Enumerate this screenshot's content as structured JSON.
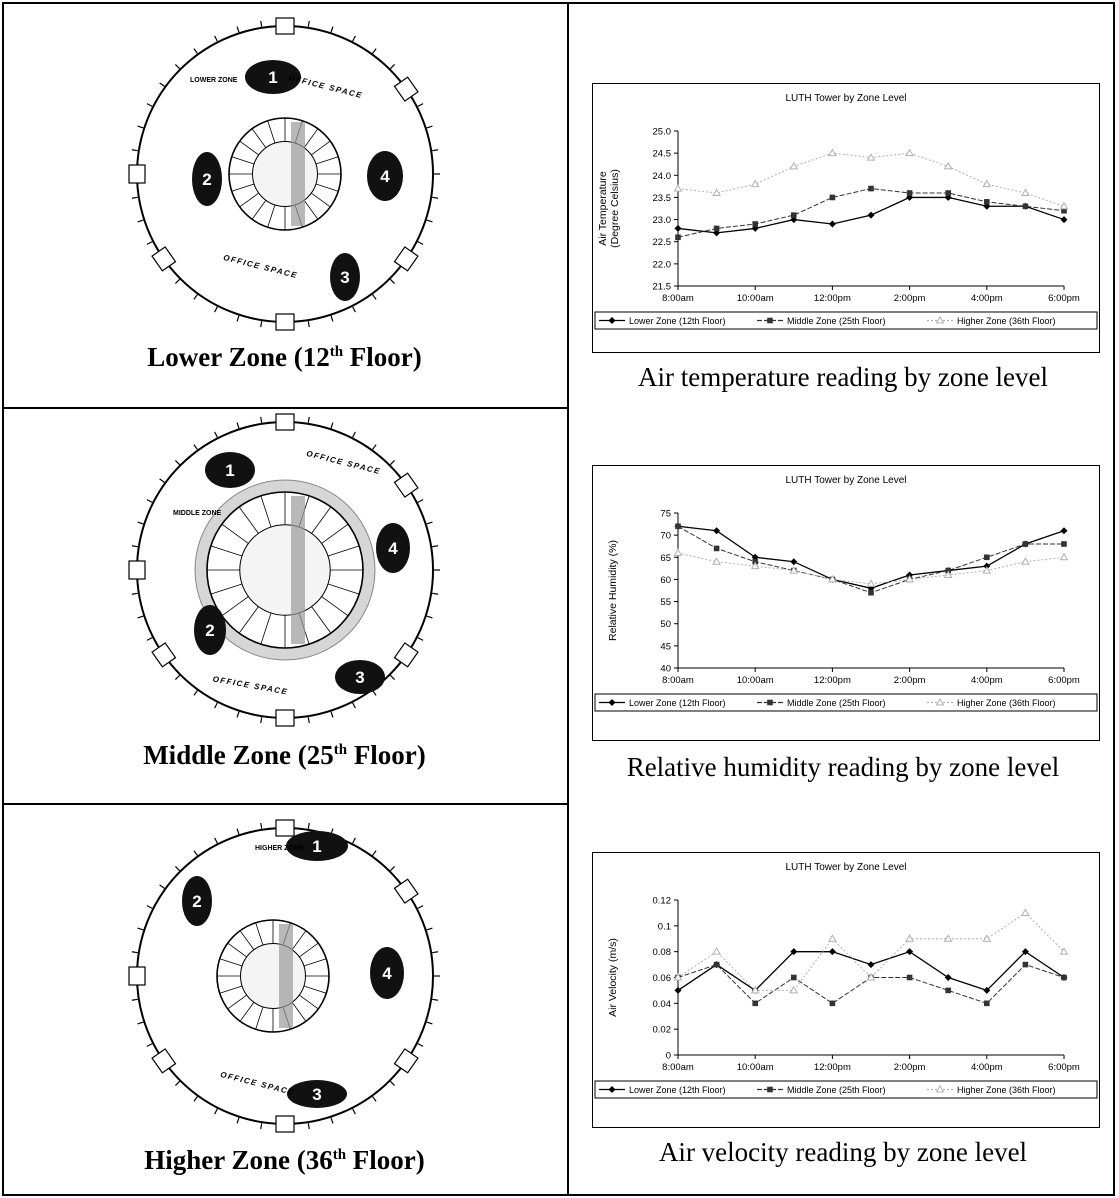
{
  "plans": [
    {
      "caption": {
        "zone": "Lower Zone (12",
        "sup": "th",
        "tail": " Floor)"
      },
      "zone_label": "LOWER ZONE",
      "office_labels": [
        "OFFICE SPACE",
        "OFFICE SPACE"
      ],
      "markers": [
        "1",
        "2",
        "3",
        "4"
      ]
    },
    {
      "caption": {
        "zone": "Middle Zone (25",
        "sup": "th",
        "tail": " Floor)"
      },
      "zone_label": "MIDDLE ZONE",
      "office_labels": [
        "OFFICE SPACE",
        "OFFICE SPACE"
      ],
      "markers": [
        "1",
        "2",
        "3",
        "4"
      ]
    },
    {
      "caption": {
        "zone": "Higher Zone (36",
        "sup": "th",
        "tail": " Floor)"
      },
      "zone_label": "HIGHER ZONE",
      "office_labels": [
        "OFFICE SPACE"
      ],
      "markers": [
        "1",
        "2",
        "3",
        "4"
      ]
    }
  ],
  "chart_data": [
    {
      "type": "line",
      "title": "LUTH Tower by Zone Level",
      "caption": "Air temperature reading by zone level",
      "ylabel_lines": [
        "Air Temperature",
        "(Degree Celsius)"
      ],
      "y_ticks": [
        "21.5",
        "22.0",
        "22.5",
        "23.0",
        "23.5",
        "24.0",
        "24.5",
        "25.0"
      ],
      "ylim": [
        21.5,
        25.0
      ],
      "x_ticks": [
        "8:00am",
        "10:00am",
        "12:00pm",
        "2:00pm",
        "4:00pm",
        "6:00pm"
      ],
      "x_count": 11,
      "series": [
        {
          "name": "Lower Zone (12th Floor)",
          "color": "#000000",
          "marker": "diamond",
          "values": [
            22.8,
            22.7,
            22.8,
            23.0,
            22.9,
            23.1,
            23.5,
            23.5,
            23.3,
            23.3,
            23.0
          ]
        },
        {
          "name": "Middle Zone (25th Floor)",
          "color": "#333333",
          "marker": "square",
          "values": [
            22.6,
            22.8,
            22.9,
            23.1,
            23.5,
            23.7,
            23.6,
            23.6,
            23.4,
            23.3,
            23.2
          ]
        },
        {
          "name": "Higher Zone (36th Floor)",
          "color": "#b0b0b0",
          "marker": "triangle",
          "values": [
            23.7,
            23.6,
            23.8,
            24.2,
            24.5,
            24.4,
            24.5,
            24.2,
            23.8,
            23.6,
            23.3
          ]
        }
      ]
    },
    {
      "type": "line",
      "title": "LUTH Tower by Zone Level",
      "caption": "Relative humidity reading by zone level",
      "ylabel_lines": [
        "Relative Humidity (%)"
      ],
      "y_ticks": [
        "40",
        "45",
        "50",
        "55",
        "60",
        "65",
        "70",
        "75"
      ],
      "ylim": [
        40,
        75
      ],
      "x_ticks": [
        "8:00am",
        "10:00am",
        "12:00pm",
        "2:00pm",
        "4:00pm",
        "6:00pm"
      ],
      "x_count": 11,
      "series": [
        {
          "name": "Lower Zone (12th Floor)",
          "color": "#000000",
          "marker": "diamond",
          "values": [
            72,
            71,
            65,
            64,
            60,
            58,
            61,
            62,
            63,
            68,
            71
          ]
        },
        {
          "name": "Middle Zone (25th Floor)",
          "color": "#333333",
          "marker": "square",
          "values": [
            72,
            67,
            64,
            62,
            60,
            57,
            60,
            62,
            65,
            68,
            68
          ]
        },
        {
          "name": "Higher Zone (36th Floor)",
          "color": "#b0b0b0",
          "marker": "triangle",
          "values": [
            66,
            64,
            63,
            62,
            60,
            59,
            60,
            61,
            62,
            64,
            65
          ]
        }
      ]
    },
    {
      "type": "line",
      "title": "LUTH Tower by Zone Level",
      "caption": "Air velocity reading by zone level",
      "ylabel_lines": [
        "Air Velocity (m/s)"
      ],
      "y_ticks": [
        "0",
        "0.02",
        "0.04",
        "0.06",
        "0.08",
        "0.1",
        "0.12"
      ],
      "ylim": [
        0,
        0.12
      ],
      "x_ticks": [
        "8:00am",
        "10:00am",
        "12:00pm",
        "2:00pm",
        "4:00pm",
        "6:00pm"
      ],
      "x_count": 11,
      "series": [
        {
          "name": "Lower Zone (12th Floor)",
          "color": "#000000",
          "marker": "diamond",
          "values": [
            0.05,
            0.07,
            0.05,
            0.08,
            0.08,
            0.07,
            0.08,
            0.06,
            0.05,
            0.08,
            0.06
          ]
        },
        {
          "name": "Middle Zone (25th Floor)",
          "color": "#333333",
          "marker": "square",
          "values": [
            0.06,
            0.07,
            0.04,
            0.06,
            0.04,
            0.06,
            0.06,
            0.05,
            0.04,
            0.07,
            0.06
          ]
        },
        {
          "name": "Higher Zone (36th Floor)",
          "color": "#b0b0b0",
          "marker": "triangle",
          "values": [
            0.06,
            0.08,
            0.05,
            0.05,
            0.09,
            0.06,
            0.09,
            0.09,
            0.09,
            0.11,
            0.08
          ]
        }
      ]
    }
  ]
}
